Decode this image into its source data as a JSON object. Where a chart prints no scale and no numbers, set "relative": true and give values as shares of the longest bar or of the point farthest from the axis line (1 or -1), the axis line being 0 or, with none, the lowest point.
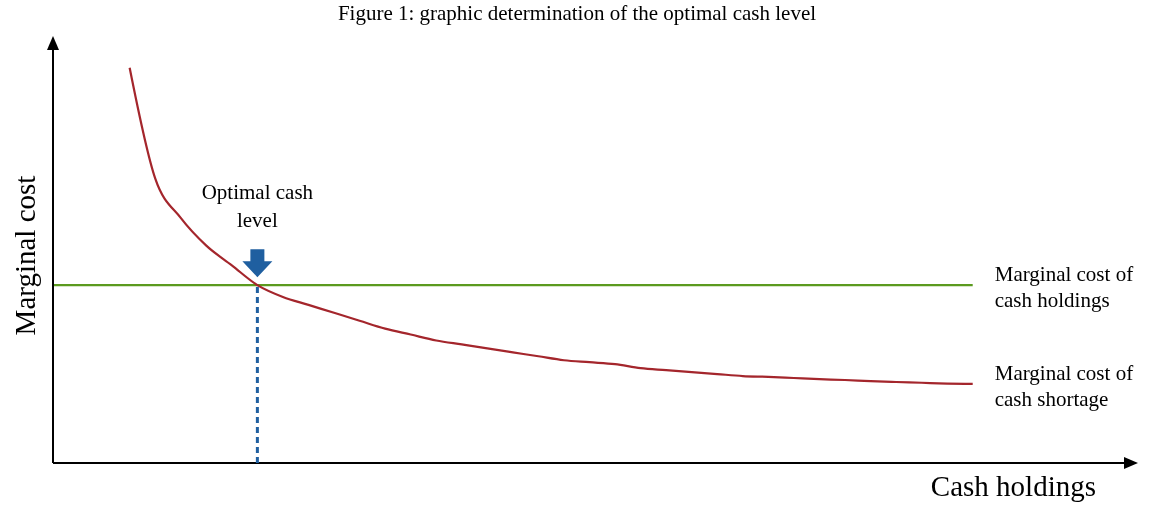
{
  "chart_data": {
    "type": "line",
    "relative": true,
    "title": "Figure 1: graphic determination of the optimal cash level",
    "xlabel": "Cash holdings",
    "ylabel": "Marginal cost",
    "categories": [
      null,
      null,
      null,
      null,
      null,
      null,
      null,
      null,
      null,
      null,
      null,
      null,
      null,
      null,
      null,
      null,
      null,
      null,
      null,
      null,
      null,
      null,
      null,
      null,
      null,
      null,
      null,
      null,
      null,
      null,
      null,
      null,
      null,
      null,
      null,
      null,
      null
    ],
    "series": [
      {
        "name": "Marginal cost of cash holdings",
        "color": "#5b9a1f",
        "values": [
          0.45,
          0.45,
          0.45,
          0.45,
          0.45,
          0.45,
          0.45,
          0.45,
          0.45,
          0.45,
          0.45,
          0.45,
          0.45,
          0.45,
          0.45,
          0.45,
          0.45,
          0.45,
          0.45,
          0.45,
          0.45,
          0.45,
          0.45,
          0.45,
          0.45,
          0.45,
          0.45,
          0.45,
          0.45,
          0.45,
          0.45,
          0.45,
          0.45,
          0.45,
          0.45,
          0.45,
          0.45
        ]
      },
      {
        "name": "Marginal cost of cash shortage",
        "color": "#a4262c",
        "values": [
          null,
          null,
          null,
          1.0,
          0.72,
          0.62,
          0.55,
          0.5,
          0.45,
          0.42,
          0.4,
          0.38,
          0.36,
          0.34,
          0.325,
          0.31,
          0.3,
          0.29,
          0.28,
          0.27,
          0.26,
          0.255,
          0.25,
          0.24,
          0.235,
          0.23,
          0.225,
          0.22,
          0.218,
          0.215,
          0.212,
          0.21,
          0.207,
          0.205,
          0.203,
          0.201,
          0.2
        ]
      }
    ],
    "annotations": [
      "Optimal cash level"
    ],
    "grid": false,
    "legend": false,
    "marker": "none",
    "line_style": "solid"
  }
}
